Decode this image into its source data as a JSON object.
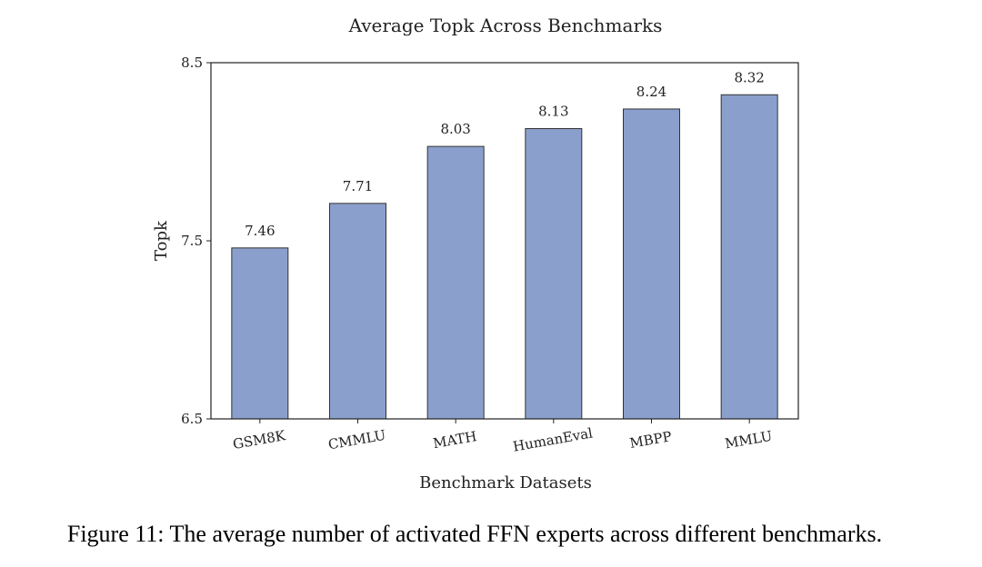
{
  "chart_data": {
    "type": "bar",
    "title": "Average Topk Across Benchmarks",
    "xlabel": "Benchmark Datasets",
    "ylabel": "Topk",
    "categories": [
      "GSM8K",
      "CMMLU",
      "MATH",
      "HumanEval",
      "MBPP",
      "MMLU"
    ],
    "values": [
      7.46,
      7.71,
      8.03,
      8.13,
      8.24,
      8.32
    ],
    "value_labels": [
      "7.46",
      "7.71",
      "8.03",
      "8.13",
      "8.24",
      "8.32"
    ],
    "ylim": [
      6.5,
      8.5
    ],
    "yticks": [
      6.5,
      7.5,
      8.5
    ],
    "ytick_labels": [
      "6.5",
      "7.5",
      "8.5"
    ],
    "grid": false,
    "legend": "none",
    "bar_color": "#8a9fcc",
    "bar_edge_color": "#333333"
  },
  "caption": "Figure 11: The average number of activated FFN experts across different benchmarks."
}
